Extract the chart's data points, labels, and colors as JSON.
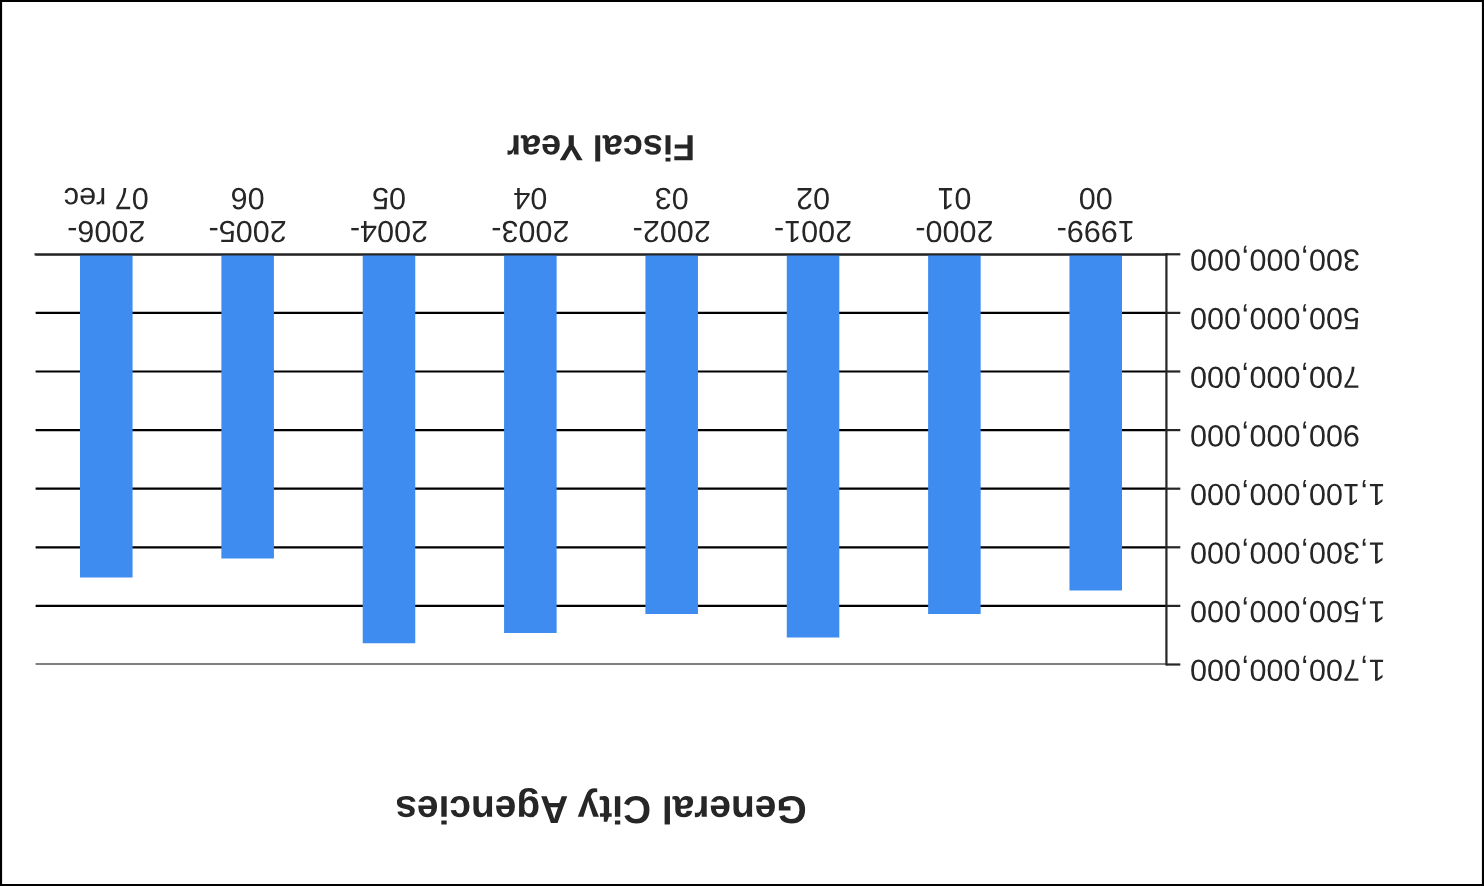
{
  "chart_data": {
    "type": "bar",
    "title": "General City Agencies",
    "xlabel": "Fiscal Year",
    "categories": [
      "2006-07 rec",
      "2005-06",
      "2004-05",
      "2003-04",
      "2002-03",
      "2001-02",
      "2000-01",
      "1999-00"
    ],
    "values": [
      1400000000,
      1335000000,
      1625000000,
      1590000000,
      1525000000,
      1605000000,
      1525000000,
      1445000000
    ],
    "color": "#3f8cf0",
    "ylim": [
      1700000000,
      300000000
    ],
    "yticks": [
      {
        "value": 300000000,
        "label": "300,000,000"
      },
      {
        "value": 500000000,
        "label": "500,000,000"
      },
      {
        "value": 700000000,
        "label": "700,000,000"
      },
      {
        "value": 900000000,
        "label": "900,000,000"
      },
      {
        "value": 1100000000,
        "label": "1,100,000,000"
      },
      {
        "value": 1300000000,
        "label": "1,300,000,000"
      },
      {
        "value": 1500000000,
        "label": "1,500,000,000"
      },
      {
        "value": 1700000000,
        "label": "1,700,000,000"
      }
    ],
    "grid": "y"
  }
}
